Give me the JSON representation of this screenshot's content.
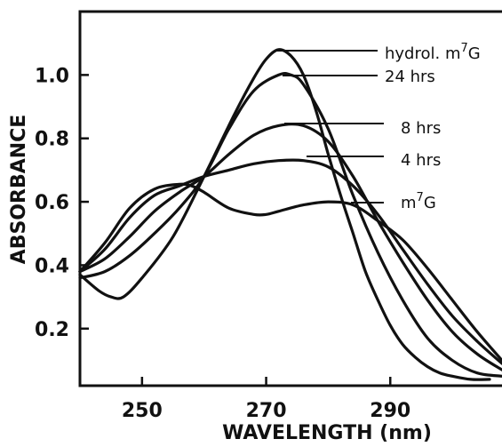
{
  "chart_data": {
    "type": "line",
    "xlabel": "WAVELENGTH (nm)",
    "ylabel": "ABSORBANCE",
    "xlim": [
      240,
      308
    ],
    "ylim": [
      0.02,
      1.2
    ],
    "xticks": [
      250,
      270,
      290
    ],
    "yticks": [
      0.2,
      0.4,
      0.6,
      0.8,
      1.0
    ],
    "ytick_labels": [
      "0.2",
      "0.4",
      "0.6",
      "0.8",
      "1.0"
    ],
    "grid": false,
    "series": [
      {
        "name": "hydrol. m7G",
        "label_main": "hydrol. m",
        "label_sup": "7",
        "label_tail": "G",
        "points": [
          [
            240,
            0.37
          ],
          [
            243,
            0.32
          ],
          [
            245,
            0.3
          ],
          [
            247,
            0.3
          ],
          [
            250,
            0.36
          ],
          [
            255,
            0.49
          ],
          [
            260,
            0.68
          ],
          [
            265,
            0.88
          ],
          [
            268,
            0.99
          ],
          [
            270,
            1.05
          ],
          [
            272,
            1.08
          ],
          [
            274,
            1.06
          ],
          [
            276,
            1.0
          ],
          [
            278,
            0.89
          ],
          [
            280,
            0.75
          ],
          [
            282,
            0.62
          ],
          [
            284,
            0.5
          ],
          [
            286,
            0.38
          ],
          [
            288,
            0.29
          ],
          [
            290,
            0.21
          ],
          [
            292,
            0.15
          ],
          [
            294,
            0.11
          ],
          [
            296,
            0.08
          ],
          [
            298,
            0.06
          ],
          [
            300,
            0.05
          ],
          [
            303,
            0.04
          ],
          [
            306,
            0.04
          ]
        ]
      },
      {
        "name": "24 hrs",
        "label_main": "24 hrs",
        "points": [
          [
            240,
            0.36
          ],
          [
            244,
            0.38
          ],
          [
            248,
            0.43
          ],
          [
            252,
            0.5
          ],
          [
            256,
            0.58
          ],
          [
            260,
            0.68
          ],
          [
            264,
            0.83
          ],
          [
            268,
            0.95
          ],
          [
            272,
            1.0
          ],
          [
            274,
            1.0
          ],
          [
            276,
            0.97
          ],
          [
            280,
            0.83
          ],
          [
            284,
            0.62
          ],
          [
            288,
            0.44
          ],
          [
            292,
            0.29
          ],
          [
            296,
            0.17
          ],
          [
            300,
            0.1
          ],
          [
            304,
            0.06
          ],
          [
            308,
            0.05
          ]
        ]
      },
      {
        "name": "8 hrs",
        "label_main": "8 hrs",
        "points": [
          [
            240,
            0.38
          ],
          [
            244,
            0.42
          ],
          [
            248,
            0.49
          ],
          [
            252,
            0.57
          ],
          [
            256,
            0.63
          ],
          [
            260,
            0.68
          ],
          [
            264,
            0.75
          ],
          [
            268,
            0.81
          ],
          [
            272,
            0.84
          ],
          [
            276,
            0.84
          ],
          [
            280,
            0.79
          ],
          [
            284,
            0.68
          ],
          [
            288,
            0.54
          ],
          [
            292,
            0.41
          ],
          [
            296,
            0.29
          ],
          [
            300,
            0.19
          ],
          [
            304,
            0.12
          ],
          [
            308,
            0.07
          ]
        ]
      },
      {
        "name": "4 hrs",
        "label_main": "4 hrs",
        "points": [
          [
            240,
            0.38
          ],
          [
            244,
            0.45
          ],
          [
            248,
            0.55
          ],
          [
            252,
            0.62
          ],
          [
            256,
            0.65
          ],
          [
            260,
            0.68
          ],
          [
            264,
            0.7
          ],
          [
            268,
            0.72
          ],
          [
            272,
            0.73
          ],
          [
            276,
            0.73
          ],
          [
            280,
            0.71
          ],
          [
            284,
            0.65
          ],
          [
            288,
            0.56
          ],
          [
            292,
            0.45
          ],
          [
            296,
            0.34
          ],
          [
            300,
            0.24
          ],
          [
            304,
            0.16
          ],
          [
            308,
            0.09
          ]
        ]
      },
      {
        "name": "m7G",
        "label_main": "m",
        "label_sup": "7",
        "label_tail": "G",
        "points": [
          [
            240,
            0.38
          ],
          [
            244,
            0.47
          ],
          [
            248,
            0.58
          ],
          [
            252,
            0.64
          ],
          [
            256,
            0.655
          ],
          [
            258,
            0.65
          ],
          [
            260,
            0.63
          ],
          [
            264,
            0.58
          ],
          [
            268,
            0.56
          ],
          [
            270,
            0.56
          ],
          [
            272,
            0.57
          ],
          [
            276,
            0.59
          ],
          [
            280,
            0.6
          ],
          [
            284,
            0.59
          ],
          [
            288,
            0.54
          ],
          [
            292,
            0.48
          ],
          [
            296,
            0.39
          ],
          [
            300,
            0.29
          ],
          [
            304,
            0.19
          ],
          [
            308,
            0.1
          ]
        ]
      }
    ]
  }
}
